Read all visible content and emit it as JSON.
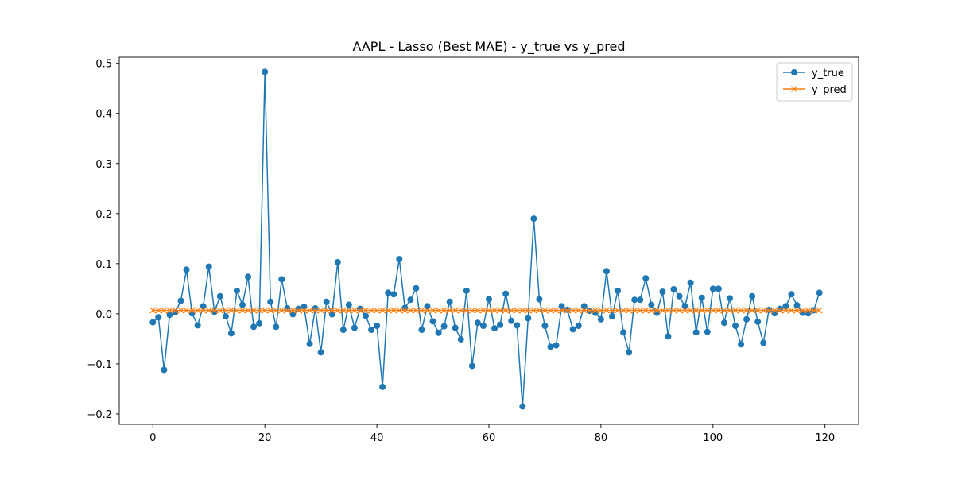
{
  "chart_data": {
    "type": "line",
    "title": "AAPL - Lasso (Best MAE) - y_true vs y_pred",
    "xlabel": "",
    "ylabel": "",
    "xlim": [
      -6,
      126
    ],
    "ylim": [
      -0.2207,
      0.5122
    ],
    "xticks": [
      0,
      20,
      40,
      60,
      80,
      100,
      120
    ],
    "yticks": [
      -0.2,
      -0.1,
      0.0,
      0.1,
      0.2,
      0.3,
      0.4,
      0.5
    ],
    "xtick_labels": [
      "0",
      "20",
      "40",
      "60",
      "80",
      "100",
      "120"
    ],
    "ytick_labels": [
      "−0.2",
      "−0.1",
      "0.0",
      "0.1",
      "0.2",
      "0.3",
      "0.4",
      "0.5"
    ],
    "grid": false,
    "legend_position": "top-right",
    "series": [
      {
        "name": "y_true",
        "color": "#1f77b4",
        "marker": "circle",
        "values": [
          -0.017,
          -0.007,
          -0.112,
          -0.002,
          0.003,
          0.026,
          0.088,
          0.001,
          -0.023,
          0.015,
          0.094,
          0.004,
          0.035,
          -0.005,
          -0.039,
          0.046,
          0.018,
          0.074,
          -0.026,
          -0.019,
          0.483,
          0.024,
          -0.026,
          0.069,
          0.011,
          -0.001,
          0.01,
          0.014,
          -0.06,
          0.011,
          -0.077,
          0.024,
          -0.001,
          0.103,
          -0.032,
          0.018,
          -0.028,
          0.01,
          -0.004,
          -0.032,
          -0.024,
          -0.146,
          0.042,
          0.039,
          0.109,
          0.012,
          0.028,
          0.051,
          -0.032,
          0.015,
          -0.015,
          -0.038,
          -0.025,
          0.024,
          -0.028,
          -0.051,
          0.046,
          -0.104,
          -0.018,
          -0.024,
          0.029,
          -0.029,
          -0.022,
          0.04,
          -0.014,
          -0.023,
          -0.185,
          -0.009,
          0.19,
          0.029,
          -0.024,
          -0.066,
          -0.063,
          0.015,
          0.008,
          -0.031,
          -0.024,
          0.015,
          0.006,
          0.002,
          -0.011,
          0.085,
          -0.005,
          0.046,
          -0.037,
          -0.077,
          0.028,
          0.028,
          0.071,
          0.018,
          0.002,
          0.044,
          -0.045,
          0.049,
          0.035,
          0.015,
          0.062,
          -0.037,
          0.032,
          -0.036,
          0.05,
          0.05,
          -0.018,
          0.031,
          -0.024,
          -0.061,
          -0.011,
          0.035,
          -0.016,
          -0.058,
          0.008,
          0.001,
          0.01,
          0.015,
          0.039,
          0.017,
          0.002,
          0.001,
          0.007,
          0.042
        ]
      },
      {
        "name": "y_pred",
        "color": "#ff7f0e",
        "marker": "x",
        "values": [
          0.007,
          0.007,
          0.007,
          0.007,
          0.007,
          0.007,
          0.007,
          0.007,
          0.007,
          0.007,
          0.007,
          0.007,
          0.007,
          0.007,
          0.007,
          0.007,
          0.007,
          0.007,
          0.007,
          0.007,
          0.007,
          0.007,
          0.007,
          0.007,
          0.007,
          0.007,
          0.007,
          0.007,
          0.007,
          0.007,
          0.007,
          0.007,
          0.007,
          0.007,
          0.007,
          0.007,
          0.007,
          0.007,
          0.007,
          0.007,
          0.007,
          0.007,
          0.007,
          0.007,
          0.007,
          0.007,
          0.007,
          0.007,
          0.007,
          0.007,
          0.007,
          0.007,
          0.007,
          0.007,
          0.007,
          0.007,
          0.007,
          0.007,
          0.007,
          0.007,
          0.007,
          0.007,
          0.007,
          0.007,
          0.007,
          0.007,
          0.007,
          0.007,
          0.007,
          0.007,
          0.007,
          0.007,
          0.007,
          0.007,
          0.007,
          0.007,
          0.007,
          0.007,
          0.007,
          0.007,
          0.007,
          0.007,
          0.007,
          0.007,
          0.007,
          0.007,
          0.007,
          0.007,
          0.007,
          0.007,
          0.007,
          0.007,
          0.007,
          0.007,
          0.007,
          0.007,
          0.007,
          0.007,
          0.007,
          0.007,
          0.007,
          0.007,
          0.007,
          0.007,
          0.007,
          0.007,
          0.007,
          0.007,
          0.007,
          0.007,
          0.007,
          0.007,
          0.007,
          0.007,
          0.007,
          0.007,
          0.007,
          0.007,
          0.007,
          0.007
        ]
      }
    ]
  }
}
